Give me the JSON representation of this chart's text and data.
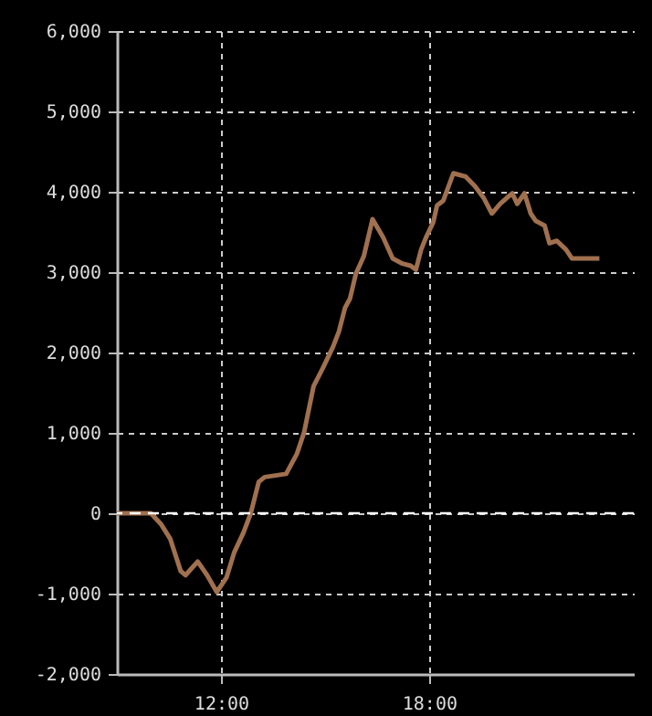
{
  "chart_data": {
    "type": "line",
    "x": [
      9.0,
      9.98,
      10.28,
      10.54,
      10.84,
      10.98,
      11.33,
      11.6,
      11.88,
      12.16,
      12.38,
      12.65,
      12.86,
      13.09,
      13.26,
      13.88,
      14.19,
      14.4,
      14.67,
      14.93,
      15.23,
      15.4,
      15.58,
      15.72,
      15.89,
      16.12,
      16.37,
      16.68,
      16.95,
      17.21,
      17.47,
      17.62,
      17.77,
      17.91,
      18.12,
      18.23,
      18.41,
      18.7,
      19.05,
      19.32,
      19.58,
      19.81,
      20.05,
      20.23,
      20.4,
      20.54,
      20.75,
      20.93,
      21.07,
      21.33,
      21.47,
      21.68,
      21.95,
      22.12,
      22.91
    ],
    "series": [
      {
        "color": "#a0704f",
        "values": [
          0,
          0,
          -140,
          -320,
          -720,
          -770,
          -600,
          -770,
          -980,
          -800,
          -490,
          -240,
          0,
          390,
          450,
          490,
          740,
          1010,
          1580,
          1800,
          2070,
          2260,
          2560,
          2670,
          2980,
          3200,
          3660,
          3430,
          3170,
          3110,
          3080,
          3030,
          3280,
          3430,
          3620,
          3830,
          3890,
          4230,
          4190,
          4070,
          3920,
          3730,
          3850,
          3920,
          3980,
          3850,
          3980,
          3730,
          3640,
          3580,
          3360,
          3390,
          3280,
          3170,
          3170
        ]
      }
    ],
    "xlim": [
      9,
      23.9
    ],
    "xticks": [
      {
        "value": 12,
        "label": "12:00"
      },
      {
        "value": 18,
        "label": "18:00"
      }
    ],
    "ylim": [
      -2000,
      6000
    ],
    "yticks": [
      {
        "value": -2000,
        "label": "-2,000"
      },
      {
        "value": -1000,
        "label": "-1,000"
      },
      {
        "value": 0,
        "label": "0"
      },
      {
        "value": 1000,
        "label": "1,000"
      },
      {
        "value": 2000,
        "label": "2,000"
      },
      {
        "value": 3000,
        "label": "3,000"
      },
      {
        "value": 4000,
        "label": "4,000"
      },
      {
        "value": 5000,
        "label": "5,000"
      },
      {
        "value": 6000,
        "label": "6,000"
      }
    ],
    "grid": true,
    "ref_lines": [
      {
        "axis": "y",
        "value": 0,
        "color": "#ffffff",
        "line_style": "dashed"
      }
    ],
    "line_style": "solid",
    "marker": "none"
  }
}
